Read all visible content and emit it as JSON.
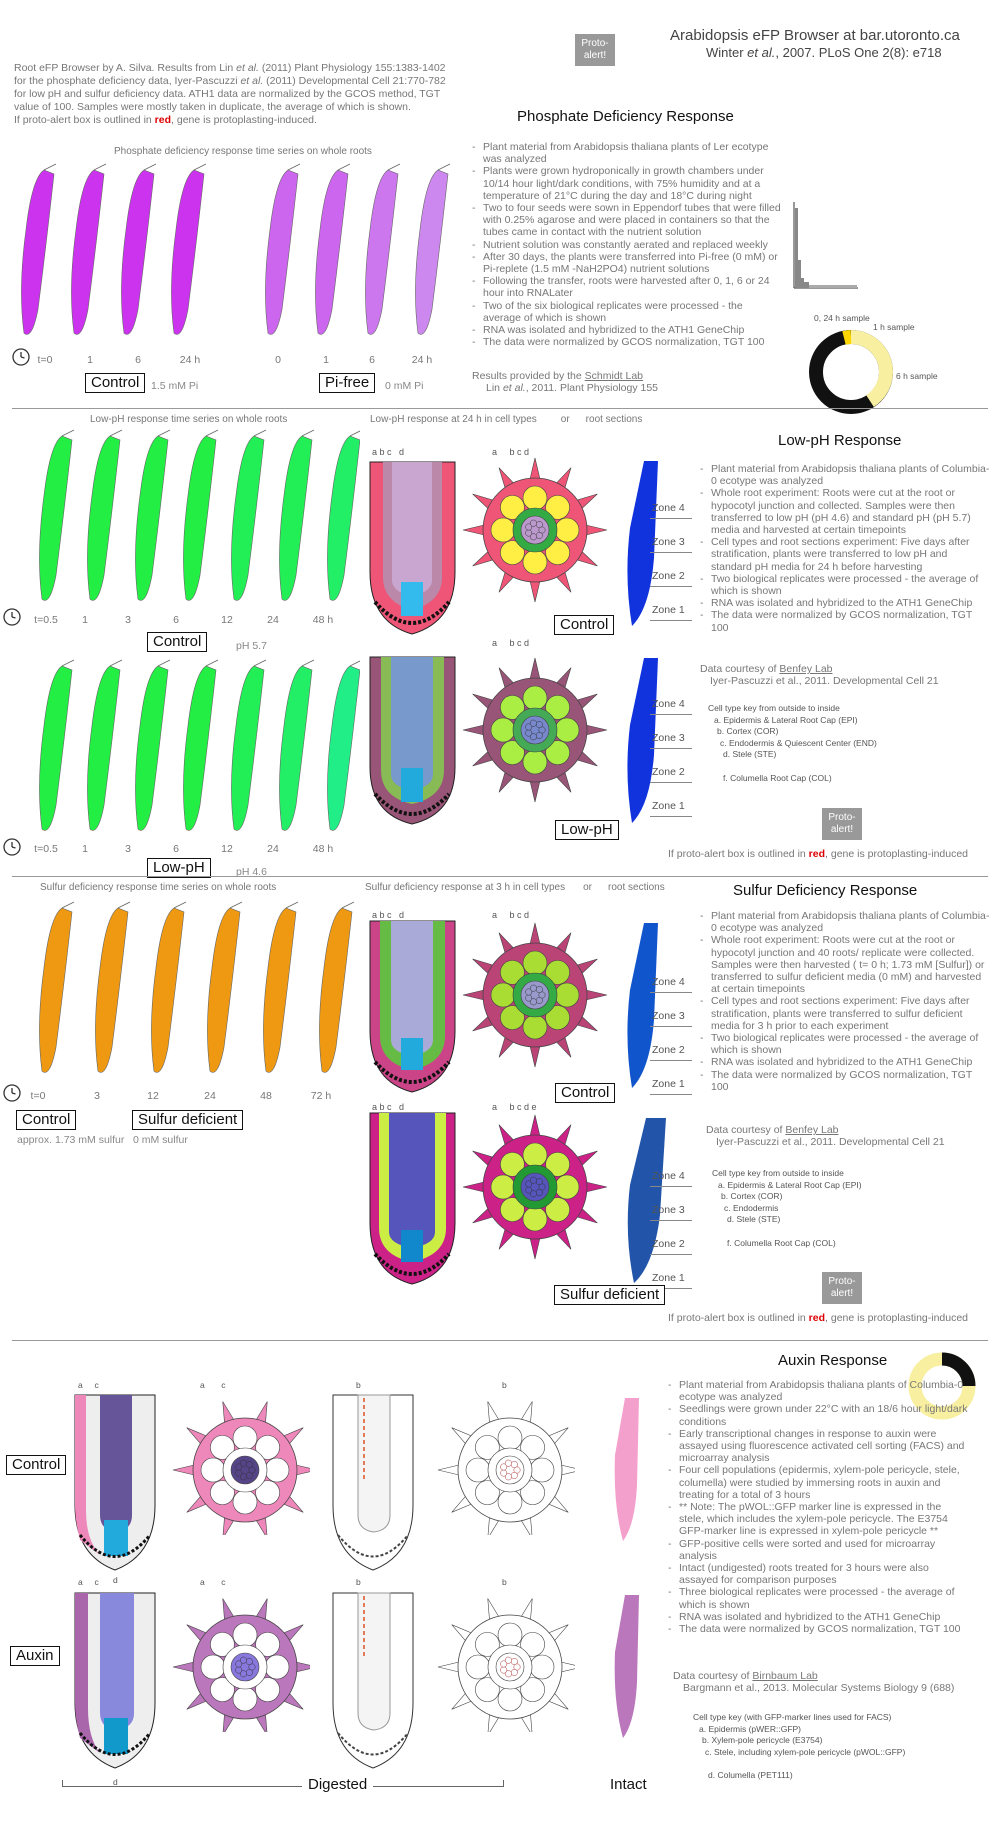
{
  "header": {
    "title": "Arabidopsis eFP Browser at bar.utoronto.ca",
    "citation_pre": "Winter ",
    "citation_etal": "et al.",
    "citation_post": ", 2007. PLoS One 2(8): e718",
    "proto_alert": "Proto-alert!"
  },
  "intro": {
    "line1_pre": "Root eFP Browser by A. Silva. Results from Lin ",
    "etal": "et al.",
    "line1_post": " (2011) Plant Physiology 155:1383-1402",
    "line2_pre": "for the phosphate deficiency data, Iyer-Pascuzzi ",
    "line2_post": " (2011) Developmental Cell 21:770-782",
    "line3": "for low pH and sulfur deficiency data. ATH1 data are normalized by the GCOS method, TGT",
    "line4": "value of 100. Samples were mostly taken in duplicate, the average of which is shown.",
    "line5_pre": "If proto-alert box is outlined in ",
    "red": "red",
    "line5_post": ", gene is protoplasting-induced."
  },
  "phosphate": {
    "title": "Phosphate Deficiency Response",
    "subtitle": "Phosphate deficiency response time series on whole roots",
    "control_ticks": [
      "t=0",
      "1",
      "6",
      "24 h"
    ],
    "pifree_ticks": [
      "0",
      "1",
      "6",
      "24 h"
    ],
    "control_label": "Control",
    "control_note": "1.5 mM Pi",
    "pifree_label": "Pi-free",
    "pifree_note": "0 mM Pi",
    "control_colors": [
      "#cc33ee",
      "#cc33ee",
      "#cc33ee",
      "#cc33ee"
    ],
    "pifree_colors": [
      "#cc66ee",
      "#cc66ee",
      "#cc77ee",
      "#cc88ee"
    ],
    "notes": [
      "Plant material from Arabidopsis thaliana plants of Ler ecotype was analyzed",
      "Plants were grown hydroponically in growth chambers under 10/14 hour light/dark conditions, with 75% humidity and at a temperature of 21°C during the day and 18°C during night",
      "Two to four seeds were sown in Eppendorf tubes that were filled with 0.25% agarose and were placed in containers so that the tubes came in contact with the nutrient solution",
      "Nutrient solution was constantly aerated and replaced weekly",
      "After 30 days, the plants were transferred into Pi-free (0 mM) or Pi-replete (1.5 mM -NaH2PO4) nutrient solutions",
      "Following the transfer, roots were harvested after 0, 1, 6 or 24 hour into RNALater",
      "Two of the six biological replicates were processed - the average of which is shown",
      "RNA was isolated and hybridized to the ATH1 GeneChip",
      "The data were normalized by GCOS normalization, TGT 100"
    ],
    "results_pre": "Results provided by the ",
    "results_lab": "Schmidt Lab",
    "results_cite_pre": "Lin ",
    "results_cite_etal": "et al.",
    "results_cite_post": ", 2011. Plant Physiology 155",
    "donut_labels": [
      "0, 24 h sample",
      "1 h sample",
      "6 h sample"
    ]
  },
  "lowph": {
    "title": "Low-pH Response",
    "subtitle_whole": "Low-pH response time series on whole roots",
    "subtitle_cells": "Low-pH response at 24 h in cell types",
    "or": "or",
    "subtitle_sections": "root sections",
    "ticks": [
      "t=0.5",
      "1",
      "3",
      "6",
      "12",
      "24",
      "48 h"
    ],
    "control_label": "Control",
    "control_note": "pH 5.7",
    "lowph_label": "Low-pH",
    "lowph_note": "pH 4.6",
    "control_colors": [
      "#22ee44",
      "#22ee44",
      "#22ee44",
      "#22ee44",
      "#22ee55",
      "#22ee55",
      "#22ee66"
    ],
    "lowph_colors": [
      "#22ee44",
      "#22ee44",
      "#22ee44",
      "#22ee44",
      "#22ee55",
      "#22ee66",
      "#22ee88"
    ],
    "cell_letters_a": [
      "a",
      "b",
      "c",
      "d"
    ],
    "cell_letters_b": [
      "a",
      "b",
      "c",
      "d"
    ],
    "zones": [
      "Zone 4",
      "Zone 3",
      "Zone 2",
      "Zone 1"
    ],
    "section_control_label": "Control",
    "section_lowph_label": "Low-pH",
    "notes": [
      "Plant material from Arabidopsis thaliana plants of Columbia-0 ecotype was analyzed",
      "Whole root experiment: Roots were cut at the root or hypocotyl junction and collected. Samples were then transferred to low pH (pH 4.6) and standard pH (pH 5.7) media and harvested at certain timepoints",
      "Cell types and root sections experiment: Five days after stratification, plants were transferred to low pH and standard pH media for 24 h before harvesting",
      "Two biological replicates were processed - the average of which is shown",
      "RNA was isolated and hybridized to the ATH1 GeneChip",
      "The data were normalized by GCOS normalization, TGT 100"
    ],
    "courtesy_pre": "Data courtesy of ",
    "courtesy_lab": "Benfey Lab",
    "courtesy_cite": "Iyer-Pascuzzi et al., 2011. Developmental Cell 21",
    "key_title": "Cell type key from outside to inside",
    "key_items": [
      "a. Epidermis & Lateral Root Cap (EPI)",
      "b. Cortex (COR)",
      "c. Endodermis & Quiescent Center (END)",
      "d. Stele (STE)",
      "f. Columella Root Cap (COL)"
    ],
    "proto_alert": "Proto-alert!",
    "footer_pre": "If proto-alert box is outlined in ",
    "footer_red": "red",
    "footer_post": ", gene is protoplasting-induced"
  },
  "sulfur": {
    "title": "Sulfur Deficiency Response",
    "subtitle_whole": "Sulfur deficiency response time series on whole roots",
    "subtitle_cells": "Sulfur deficiency response at 3 h in cell types",
    "or": "or",
    "subtitle_sections": "root sections",
    "ticks": [
      "t=0",
      "3",
      "12",
      "24",
      "48",
      "72 h"
    ],
    "control_label": "Control",
    "control_note": "approx. 1.73 mM sulfur",
    "deficient_label": "Sulfur deficient",
    "deficient_note": "0 mM sulfur",
    "colors": [
      "#ee9911",
      "#ee9911",
      "#ee9911",
      "#ee9911",
      "#ee9911",
      "#ee9911"
    ],
    "zones": [
      "Zone 4",
      "Zone 3",
      "Zone 2",
      "Zone 1"
    ],
    "section_control_label": "Control",
    "section_deficient_label": "Sulfur deficient",
    "notes": [
      "Plant material from Arabidopsis thaliana plants of Columbia-0 ecotype was analyzed",
      "Whole root experiment: Roots were cut at the root or hypocotyl junction and 40 roots/ replicate were collected. Samples were then harvested ( t= 0 h; 1.73 mM [Sulfur]) or transferred to sulfur deficient media (0 mM) and harvested at certain timepoints",
      "Cell types and root sections experiment: Five days after stratification, plants were transferred to sulfur deficient media for 3 h prior to each experiment",
      "Two biological replicates were processed - the average of which is shown",
      "RNA was isolated and hybridized to the ATH1 GeneChip",
      "The data were normalized by GCOS normalization, TGT 100"
    ],
    "courtesy_pre": "Data courtesy of ",
    "courtesy_lab": "Benfey Lab",
    "courtesy_cite": "Iyer-Pascuzzi et al., 2011. Developmental Cell 21",
    "key_title": "Cell type key from outside to inside",
    "key_items": [
      "a. Epidermis & Lateral Root Cap (EPI)",
      "b. Cortex (COR)",
      "c. Endodermis",
      "d. Stele (STE)",
      "f. Columella Root Cap (COL)"
    ],
    "proto_alert": "Proto-alert!",
    "footer_pre": "If proto-alert box is outlined in ",
    "footer_red": "red",
    "footer_post": ", gene is protoplasting-induced"
  },
  "auxin": {
    "title": "Auxin Response",
    "control_label": "Control",
    "auxin_label": "Auxin",
    "digested": "Digested",
    "intact": "Intact",
    "notes": [
      "Plant material from Arabidopsis thaliana plants of Columbia-0 ecotype was analyzed",
      "Seedlings were grown under 22°C with an 18/6 hour light/dark conditions",
      "Early transcriptional changes in response to auxin were assayed using fluorescence activated cell sorting (FACS) and microarray analysis",
      "Four cell populations (epidermis, xylem-pole pericycle, stele, columella) were studied by immersing roots in auxin and treating for a total of 3 hours",
      "** Note: The pWOL::GFP marker line is expressed in the stele, which includes the xylem-pole pericycle. The E3754 GFP-marker line is expressed in xylem-pole pericycle **",
      "GFP-positive cells were sorted and used for microarray analysis",
      "Intact (undigested) roots treated for 3 hours were also assayed for comparison purposes",
      "Three biological replicates were processed - the average of which is shown",
      "RNA was isolated and hybridized to the ATH1 GeneChip",
      "The data were normalized by GCOS normalization, TGT 100"
    ],
    "courtesy_pre": "Data courtesy of ",
    "courtesy_lab": "Birnbaum Lab",
    "courtesy_cite": "Bargmann et al., 2013. Molecular Systems Biology 9 (688)",
    "key_title": "Cell type key (with GFP-marker lines used for FACS)",
    "key_items": [
      "a. Epidermis (pWER::GFP)",
      "b. Xylem-pole pericycle (E3754)",
      "c. Stele, including xylem-pole pericycle (pWOL::GFP)",
      "d. Columella (PET111)"
    ]
  }
}
